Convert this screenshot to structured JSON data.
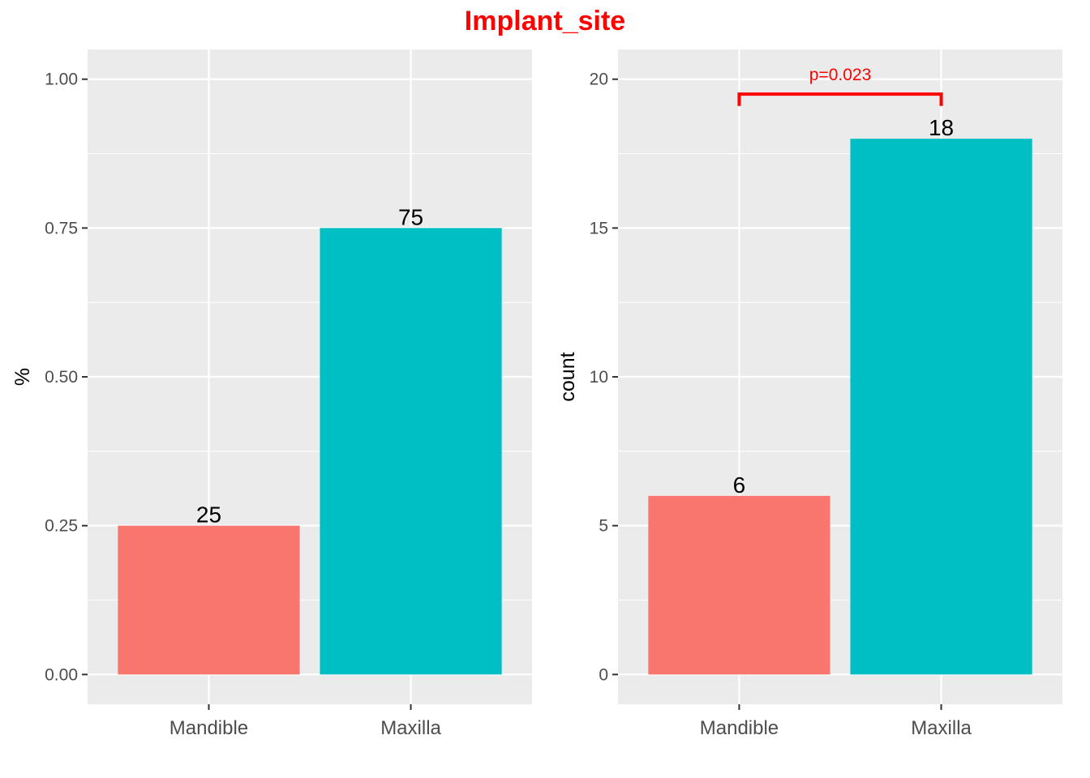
{
  "title": "Implant_site",
  "colors": {
    "Mandible": "#F8766D",
    "Maxilla": "#00BFC4",
    "title": "#FF0000"
  },
  "chart_data": [
    {
      "type": "bar",
      "categories": [
        "Mandible",
        "Maxilla"
      ],
      "values": [
        0.25,
        0.75
      ],
      "bar_labels": [
        "25",
        "75"
      ],
      "xlabel": "",
      "ylabel": "%",
      "ylim": [
        0,
        1.05
      ],
      "yticks": [
        0,
        0.25,
        0.5,
        0.75,
        1.0
      ],
      "ytick_labels": [
        "0.00",
        "0.25",
        "0.50",
        "0.75",
        "1.00"
      ],
      "grid": true
    },
    {
      "type": "bar",
      "categories": [
        "Mandible",
        "Maxilla"
      ],
      "values": [
        6,
        18
      ],
      "bar_labels": [
        "6",
        "18"
      ],
      "xlabel": "",
      "ylabel": "count",
      "ylim": [
        0,
        21
      ],
      "yticks": [
        0,
        5,
        10,
        15,
        20
      ],
      "ytick_labels": [
        "0",
        "5",
        "10",
        "15",
        "20"
      ],
      "grid": true,
      "comparison": {
        "groups": [
          "Mandible",
          "Maxilla"
        ],
        "label": "p=0.023",
        "y": 19.5,
        "drop_to": 19.1
      }
    }
  ]
}
